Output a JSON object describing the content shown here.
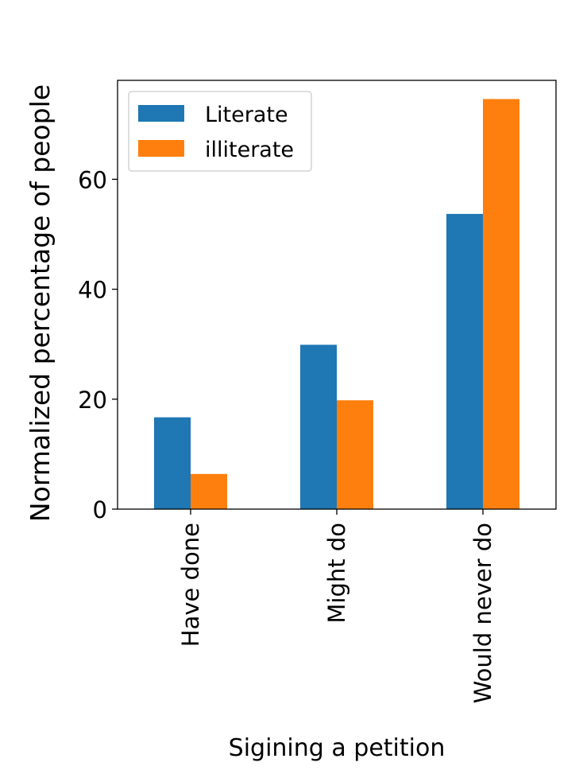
{
  "chart_data": {
    "type": "bar",
    "xlabel": "Sigining a petition",
    "ylabel": "Normalized percentage of people",
    "categories": [
      "Have done",
      "Might do",
      "Would never do"
    ],
    "series": [
      {
        "name": "Literate",
        "values": [
          16.7,
          29.9,
          53.7
        ],
        "color": "#1f77b4"
      },
      {
        "name": "illiterate",
        "values": [
          6.4,
          19.8,
          74.6
        ],
        "color": "#ff7f0e"
      }
    ],
    "ylim": [
      0,
      78
    ],
    "yticks": [
      0,
      20,
      40,
      60
    ],
    "grid": false,
    "legend_position": "top-left"
  }
}
